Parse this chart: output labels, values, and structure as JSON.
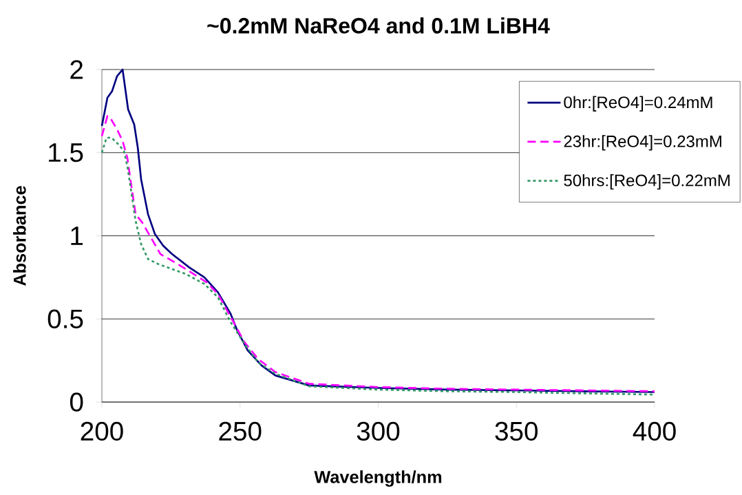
{
  "chart_data": {
    "type": "line",
    "title": "~0.2mM NaReO4 and 0.1M LiBH4",
    "xlabel": "Wavelength/nm",
    "ylabel": "Absorbance",
    "xlim": [
      200,
      400
    ],
    "xticks": [
      200,
      250,
      300,
      350,
      400
    ],
    "ylim": [
      0,
      2
    ],
    "yticks": [
      0,
      0.5,
      1,
      1.5,
      2
    ],
    "grid": "y",
    "legend": "top right",
    "series": [
      {
        "name": "0hr:[ReO4]=0.24mM",
        "color": "#000080",
        "line_style": "solid",
        "x": [
          200,
          202,
          203.7,
          205.5,
          207.5,
          209.5,
          211.7,
          213,
          214.2,
          216.7,
          219.2,
          222.2,
          225.4,
          231.6,
          237.1,
          242,
          246.6,
          249,
          252.8,
          257.8,
          262.8,
          275,
          300,
          325,
          350,
          375,
          400
        ],
        "values": [
          1.66,
          1.83,
          1.87,
          1.96,
          2.0,
          1.76,
          1.67,
          1.53,
          1.34,
          1.13,
          1.01,
          0.94,
          0.89,
          0.81,
          0.75,
          0.66,
          0.53,
          0.43,
          0.31,
          0.22,
          0.16,
          0.1,
          0.085,
          0.075,
          0.07,
          0.065,
          0.06
        ]
      },
      {
        "name": "23hr:[ReO4]=0.23mM",
        "color": "#ff00ff",
        "line_style": "dashed",
        "x": [
          200,
          202,
          203,
          205.5,
          207.5,
          209.2,
          210.5,
          212.2,
          214.6,
          221.2,
          225.4,
          230.4,
          237.9,
          242,
          247,
          251.6,
          256.5,
          262.8,
          275,
          300,
          325,
          350,
          375,
          400
        ],
        "values": [
          1.6,
          1.72,
          1.71,
          1.64,
          1.57,
          1.47,
          1.32,
          1.13,
          1.08,
          0.89,
          0.85,
          0.8,
          0.72,
          0.65,
          0.5,
          0.36,
          0.26,
          0.18,
          0.11,
          0.09,
          0.08,
          0.075,
          0.07,
          0.065
        ]
      },
      {
        "name": "50hrs:[ReO4]=0.22mM",
        "color": "#339966",
        "line_style": "dotted",
        "x": [
          200,
          201.7,
          203.5,
          206,
          208,
          209.2,
          210.5,
          212.2,
          214.2,
          216.7,
          220.4,
          225.4,
          230.4,
          237.1,
          242,
          246.6,
          251.6,
          256.5,
          262.8,
          275,
          300,
          325,
          350,
          375,
          400
        ],
        "values": [
          1.5,
          1.59,
          1.59,
          1.55,
          1.51,
          1.42,
          1.28,
          1.09,
          0.95,
          0.86,
          0.83,
          0.8,
          0.77,
          0.71,
          0.63,
          0.48,
          0.35,
          0.24,
          0.17,
          0.095,
          0.075,
          0.065,
          0.06,
          0.052,
          0.045
        ]
      }
    ]
  }
}
